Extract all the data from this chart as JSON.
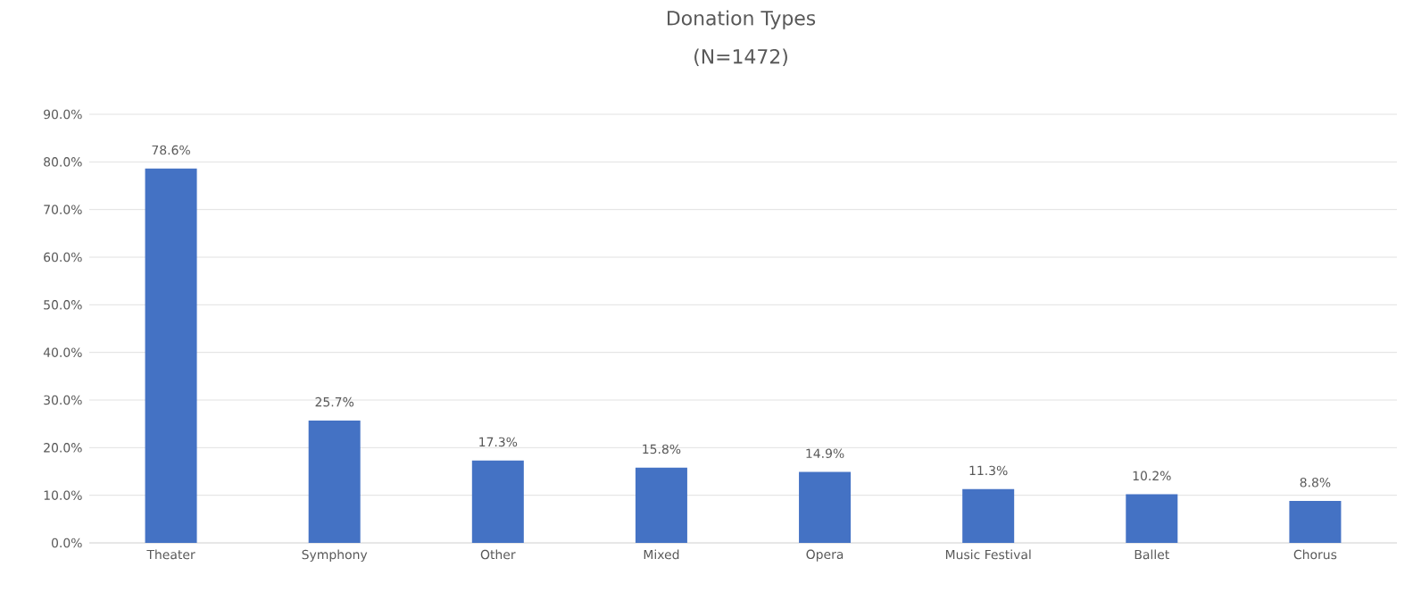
{
  "chart_data": {
    "type": "bar",
    "title": "Donation Types",
    "subtitle": "(N=1472)",
    "categories": [
      "Theater",
      "Symphony",
      "Other",
      "Mixed",
      "Opera",
      "Music Festival",
      "Ballet",
      "Chorus"
    ],
    "values": [
      78.6,
      25.7,
      17.3,
      15.8,
      14.9,
      11.3,
      10.2,
      8.8
    ],
    "value_labels": [
      "78.6%",
      "25.7%",
      "17.3%",
      "15.8%",
      "14.9%",
      "11.3%",
      "10.2%",
      "8.8%"
    ],
    "color": "#4472c4",
    "ylim": [
      0,
      90
    ],
    "yticks": [
      {
        "value": 0,
        "label": "0.0%"
      },
      {
        "value": 10,
        "label": "10.0%"
      },
      {
        "value": 20,
        "label": "20.0%"
      },
      {
        "value": 30,
        "label": "30.0%"
      },
      {
        "value": 40,
        "label": "40.0%"
      },
      {
        "value": 50,
        "label": "50.0%"
      },
      {
        "value": 60,
        "label": "60.0%"
      },
      {
        "value": 70,
        "label": "70.0%"
      },
      {
        "value": 80,
        "label": "80.0%"
      },
      {
        "value": 90,
        "label": "90.0%"
      }
    ],
    "grid": "y"
  }
}
